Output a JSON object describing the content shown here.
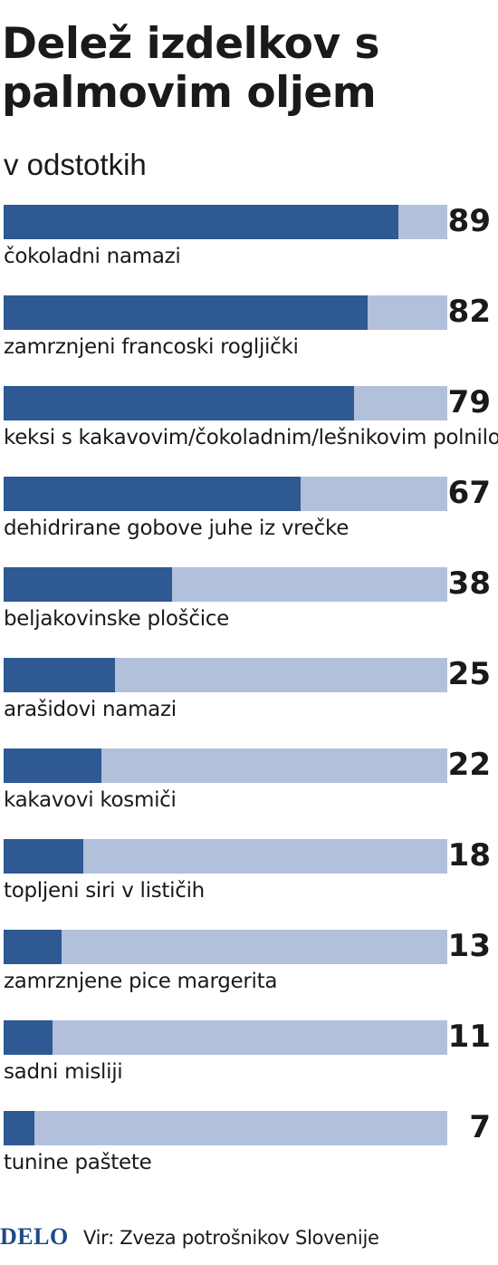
{
  "chart_data": {
    "type": "bar",
    "orientation": "horizontal",
    "title": "Delež izdelkov s palmovim oljem",
    "subtitle": "v odstotkih",
    "categories": [
      "čokoladni namazi",
      "zamrznjeni francoski rogljički",
      "keksi s kakavovim/čokoladnim/lešnikovim polnilom",
      "dehidrirane gobove juhe iz vrečke",
      "beljakovinske ploščice",
      "arašidovi namazi",
      "kakavovi kosmiči",
      "topljeni siri v lističih",
      "zamrznjene pice margerita",
      "sadni misliji",
      "tunine paštete"
    ],
    "values": [
      89,
      82,
      79,
      67,
      38,
      25,
      22,
      18,
      13,
      11,
      7
    ],
    "xlim": [
      0,
      100
    ],
    "grid": false,
    "colors": {
      "bar": "#2e5992",
      "track": "#b2c0dc"
    }
  },
  "footer": {
    "logo": "DELO",
    "source": "Vir: Zveza potrošnikov Slovenije"
  }
}
